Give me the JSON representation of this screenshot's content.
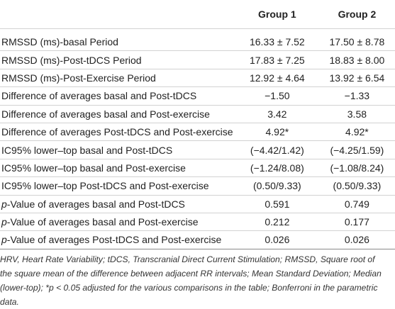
{
  "header": {
    "col0": "",
    "col1": "Group 1",
    "col2": "Group 2"
  },
  "rows": [
    {
      "pfx": "",
      "label": "RMSSD (ms)-basal Period",
      "g1": "16.33 ± 7.52",
      "g2": "17.50 ± 8.78"
    },
    {
      "pfx": "",
      "label": "RMSSD (ms)-Post-tDCS Period",
      "g1": "17.83 ± 7.25",
      "g2": "18.83 ± 8.00"
    },
    {
      "pfx": "",
      "label": "RMSSD (ms)-Post-Exercise Period",
      "g1": "12.92 ± 4.64",
      "g2": "13.92 ± 6.54"
    },
    {
      "pfx": "",
      "label": "Difference of averages basal and Post-tDCS",
      "g1": "−1.50",
      "g2": "−1.33"
    },
    {
      "pfx": "",
      "label": "Difference of averages basal and Post-exercise",
      "g1": "3.42",
      "g2": "3.58"
    },
    {
      "pfx": "",
      "label": "Difference of averages Post-tDCS and Post-exercise",
      "g1": "4.92*",
      "g2": "4.92*"
    },
    {
      "pfx": "",
      "label": "IC95% lower–top basal and Post-tDCS",
      "g1": "(−4.42/1.42)",
      "g2": "(−4.25/1.59)"
    },
    {
      "pfx": "",
      "label": "IC95% lower–top basal and Post-exercise",
      "g1": "(−1.24/8.08)",
      "g2": "(−1.08/8.24)"
    },
    {
      "pfx": "",
      "label": "IC95% lower–top Post-tDCS and Post-exercise",
      "g1": "(0.50/9.33)",
      "g2": "(0.50/9.33)"
    },
    {
      "pfx": "p",
      "label": "-Value of averages basal and Post-tDCS",
      "g1": "0.591",
      "g2": "0.749"
    },
    {
      "pfx": "p",
      "label": "-Value of averages basal and Post-exercise",
      "g1": "0.212",
      "g2": "0.177"
    },
    {
      "pfx": "p",
      "label": "-Value of averages Post-tDCS and Post-exercise",
      "g1": "0.026",
      "g2": "0.026"
    }
  ],
  "footnote": "HRV, Heart Rate Variability; tDCS, Transcranial Direct Current Stimulation; RMSSD, Square root of the square mean of the difference between adjacent RR intervals; Mean Standard Deviation; Median (lower-top); *p < 0.05 adjusted for the various comparisons in the table; Bonferroni in the parametric data."
}
